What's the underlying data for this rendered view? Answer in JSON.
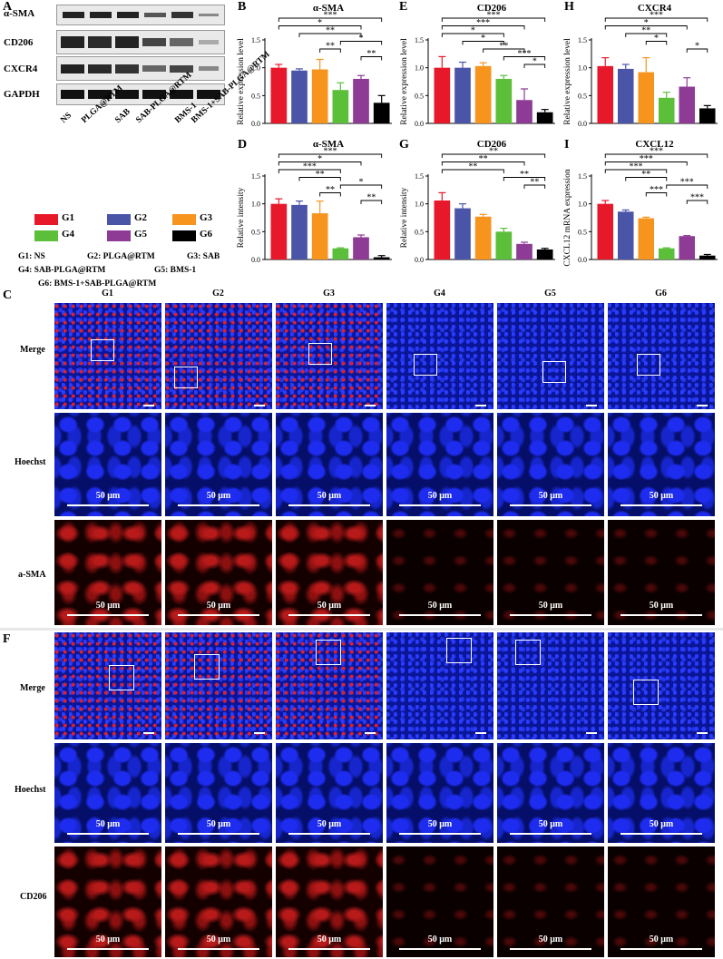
{
  "panel_letters": {
    "A": "A",
    "B": "B",
    "C": "C",
    "D": "D",
    "E": "E",
    "F": "F",
    "G": "G",
    "H": "H",
    "I": "I"
  },
  "western_blot": {
    "proteins": [
      "α-SMA",
      "CD206",
      "CXCR4",
      "GAPDH"
    ],
    "lanes": [
      "NS",
      "PLGA@RTM",
      "SAB",
      "SAB-PLGA@RTM",
      "BMS-1",
      "BMS-1+SAB-PLGA@RTM"
    ]
  },
  "legend": {
    "groups": [
      {
        "label": "G1",
        "color": "#e8182b"
      },
      {
        "label": "G2",
        "color": "#4b55a8"
      },
      {
        "label": "G3",
        "color": "#f7941d"
      },
      {
        "label": "G4",
        "color": "#5cbf3a"
      },
      {
        "label": "G5",
        "color": "#8e3b96"
      },
      {
        "label": "G6",
        "color": "#000000"
      }
    ],
    "definitions": [
      "G1: NS",
      "G2: PLGA@RTM",
      "G3: SAB",
      "G4: SAB-PLGA@RTM",
      "G5: BMS-1",
      "G6: BMS-1+SAB-PLGA@RTM"
    ]
  },
  "chart_data": [
    {
      "id": "B",
      "type": "bar",
      "title": "α-SMA",
      "ylabel": "Relative expression level",
      "categories": [
        "G1",
        "G2",
        "G3",
        "G4",
        "G5",
        "G6"
      ],
      "values": [
        1.0,
        0.95,
        0.97,
        0.6,
        0.8,
        0.37
      ],
      "errors": [
        0.06,
        0.03,
        0.18,
        0.13,
        0.06,
        0.13
      ],
      "ylim": [
        0,
        1.5
      ],
      "yticks": [
        "0.0",
        "0.5",
        "1.0",
        "1.5"
      ],
      "sig": [
        {
          "a": 0,
          "b": 5,
          "label": "***"
        },
        {
          "a": 0,
          "b": 4,
          "label": "*"
        },
        {
          "a": 1,
          "b": 4,
          "label": "**"
        },
        {
          "a": 2,
          "b": 3,
          "label": "**"
        },
        {
          "a": 3,
          "b": 5,
          "label": "*"
        },
        {
          "a": 4,
          "b": 5,
          "label": "**"
        }
      ]
    },
    {
      "id": "E",
      "type": "bar",
      "title": "CD206",
      "ylabel": "Relative expression level",
      "categories": [
        "G1",
        "G2",
        "G3",
        "G4",
        "G5",
        "G6"
      ],
      "values": [
        1.0,
        1.0,
        1.03,
        0.8,
        0.42,
        0.2
      ],
      "errors": [
        0.2,
        0.1,
        0.06,
        0.06,
        0.2,
        0.05
      ],
      "ylim": [
        0,
        1.5
      ],
      "yticks": [
        "0.0",
        "0.5",
        "1.0",
        "1.5"
      ],
      "sig": [
        {
          "a": 0,
          "b": 5,
          "label": "***"
        },
        {
          "a": 0,
          "b": 4,
          "label": "***"
        },
        {
          "a": 0,
          "b": 3,
          "label": "*"
        },
        {
          "a": 1,
          "b": 3,
          "label": "*"
        },
        {
          "a": 2,
          "b": 4,
          "label": "**"
        },
        {
          "a": 3,
          "b": 5,
          "label": "***"
        },
        {
          "a": 4,
          "b": 5,
          "label": "*"
        }
      ]
    },
    {
      "id": "H",
      "type": "bar",
      "title": "CXCR4",
      "ylabel": "Relative expression level",
      "categories": [
        "G1",
        "G2",
        "G3",
        "G4",
        "G5",
        "G6"
      ],
      "values": [
        1.03,
        0.98,
        0.92,
        0.46,
        0.66,
        0.27
      ],
      "errors": [
        0.15,
        0.08,
        0.26,
        0.1,
        0.16,
        0.05
      ],
      "ylim": [
        0,
        1.5
      ],
      "yticks": [
        "0.0",
        "0.5",
        "1.0",
        "1.5"
      ],
      "sig": [
        {
          "a": 0,
          "b": 5,
          "label": "***"
        },
        {
          "a": 0,
          "b": 4,
          "label": "*"
        },
        {
          "a": 1,
          "b": 3,
          "label": "**"
        },
        {
          "a": 2,
          "b": 3,
          "label": "*"
        },
        {
          "a": 4,
          "b": 5,
          "label": "*"
        }
      ]
    },
    {
      "id": "D",
      "type": "bar",
      "title": "α-SMA",
      "ylabel": "Relative intensity",
      "categories": [
        "G1",
        "G2",
        "G3",
        "G4",
        "G5",
        "G6"
      ],
      "values": [
        1.0,
        0.98,
        0.83,
        0.2,
        0.4,
        0.04
      ],
      "errors": [
        0.09,
        0.07,
        0.22,
        0.01,
        0.04,
        0.03
      ],
      "ylim": [
        0,
        1.5
      ],
      "yticks": [
        "0.0",
        "0.5",
        "1.0",
        "1.5"
      ],
      "sig": [
        {
          "a": 0,
          "b": 5,
          "label": "***"
        },
        {
          "a": 0,
          "b": 4,
          "label": "*"
        },
        {
          "a": 0,
          "b": 3,
          "label": "***"
        },
        {
          "a": 1,
          "b": 3,
          "label": "**"
        },
        {
          "a": 2,
          "b": 3,
          "label": "**"
        },
        {
          "a": 3,
          "b": 5,
          "label": "*"
        },
        {
          "a": 4,
          "b": 5,
          "label": "**"
        }
      ]
    },
    {
      "id": "G",
      "type": "bar",
      "title": "CD206",
      "ylabel": "Relative intensity",
      "categories": [
        "G1",
        "G2",
        "G3",
        "G4",
        "G5",
        "G6"
      ],
      "values": [
        1.06,
        0.92,
        0.77,
        0.5,
        0.28,
        0.18
      ],
      "errors": [
        0.14,
        0.08,
        0.04,
        0.06,
        0.03,
        0.02
      ],
      "ylim": [
        0,
        1.5
      ],
      "yticks": [
        "0.0",
        "0.5",
        "1.0",
        "1.5"
      ],
      "sig": [
        {
          "a": 0,
          "b": 5,
          "label": "**"
        },
        {
          "a": 0,
          "b": 4,
          "label": "**"
        },
        {
          "a": 0,
          "b": 3,
          "label": "**"
        },
        {
          "a": 3,
          "b": 5,
          "label": "**"
        },
        {
          "a": 4,
          "b": 5,
          "label": "**"
        }
      ]
    },
    {
      "id": "I",
      "type": "bar",
      "title": "CXCL12",
      "ylabel": "CXCL12 mRNA expression",
      "categories": [
        "G1",
        "G2",
        "G3",
        "G4",
        "G5",
        "G6"
      ],
      "values": [
        1.0,
        0.86,
        0.74,
        0.2,
        0.42,
        0.07
      ],
      "errors": [
        0.06,
        0.03,
        0.02,
        0.01,
        0.01,
        0.02
      ],
      "ylim": [
        0,
        1.5
      ],
      "yticks": [
        "0.0",
        "0.5",
        "1.0",
        "1.5"
      ],
      "sig": [
        {
          "a": 0,
          "b": 5,
          "label": "***"
        },
        {
          "a": 0,
          "b": 4,
          "label": "***"
        },
        {
          "a": 0,
          "b": 3,
          "label": "***"
        },
        {
          "a": 1,
          "b": 3,
          "label": "**"
        },
        {
          "a": 2,
          "b": 3,
          "label": "***"
        },
        {
          "a": 3,
          "b": 5,
          "label": "***"
        },
        {
          "a": 4,
          "b": 5,
          "label": "***"
        }
      ]
    }
  ],
  "microscopy": {
    "columns": [
      "G1",
      "G2",
      "G3",
      "G4",
      "G5",
      "G6"
    ],
    "scale_bar": "50 μm",
    "panel_C_rows": [
      "Merge",
      "Hoechst",
      "a-SMA"
    ],
    "panel_F_rows": [
      "Merge",
      "Hoechst",
      "CD206"
    ]
  }
}
